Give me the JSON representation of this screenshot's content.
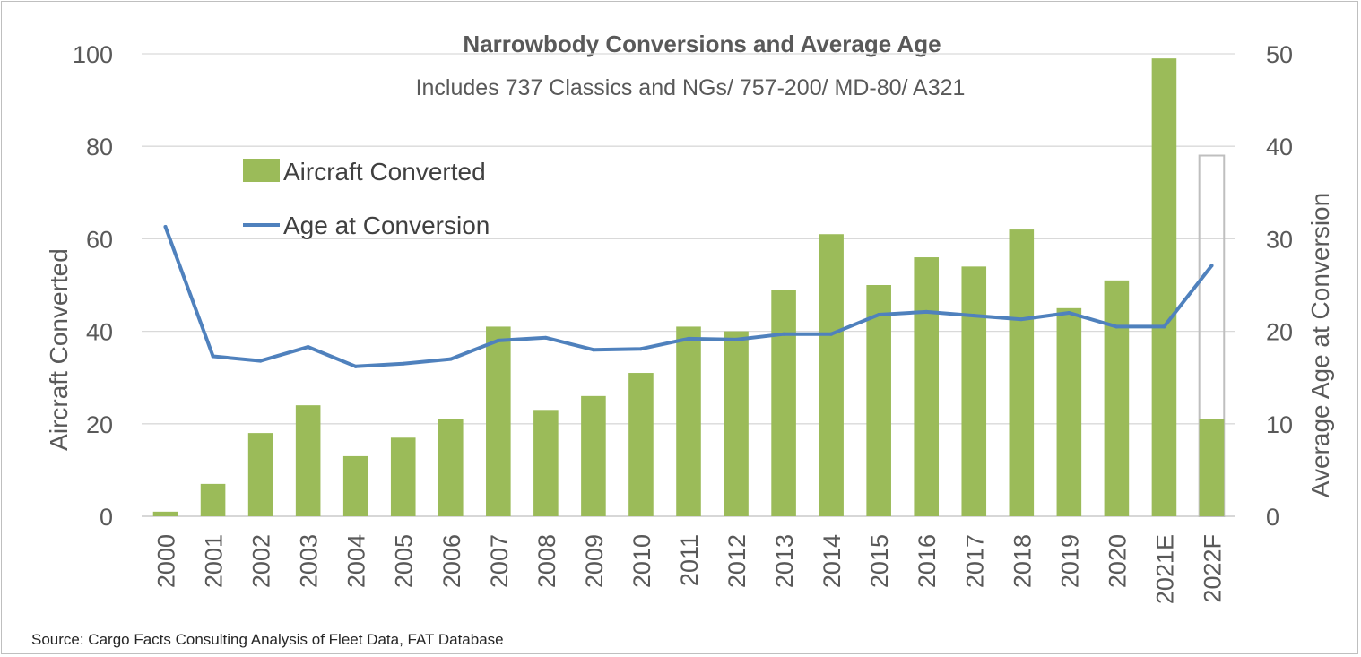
{
  "chart_data": {
    "type": "bar",
    "title": "Narrowbody Conversions and Average Age",
    "subtitle": "Includes 737 Classics and NGs/ 757-200/ MD-80/ A321",
    "categories": [
      "2000",
      "2001",
      "2002",
      "2003",
      "2004",
      "2005",
      "2006",
      "2007",
      "2008",
      "2009",
      "2010",
      "2011",
      "2012",
      "2013",
      "2014",
      "2015",
      "2016",
      "2017",
      "2018",
      "2019",
      "2020",
      "2021E",
      "2022F"
    ],
    "series": [
      {
        "name": "Aircraft Converted",
        "type": "bar",
        "axis": "left",
        "color": "#9bbb59",
        "values": [
          1,
          7,
          18,
          24,
          13,
          17,
          21,
          41,
          23,
          26,
          31,
          41,
          40,
          49,
          61,
          50,
          56,
          54,
          62,
          45,
          51,
          99,
          21
        ]
      },
      {
        "name": "Age at Conversion",
        "type": "line",
        "axis": "right",
        "color": "#4f81bd",
        "values": [
          31.3,
          17.3,
          16.8,
          18.3,
          16.2,
          16.5,
          17.0,
          19.0,
          19.3,
          18.0,
          18.1,
          19.2,
          19.1,
          19.7,
          19.7,
          21.8,
          22.1,
          21.7,
          21.3,
          22.0,
          20.5,
          20.5,
          27.1
        ]
      }
    ],
    "forecast_outline": {
      "category": "2022F",
      "value": 78,
      "color": "#bfbfbf"
    },
    "ylabel": "Aircraft Converted",
    "y2label": "Average Age at Conversion",
    "ylim": [
      0,
      100
    ],
    "y2lim": [
      0,
      50
    ],
    "yticks": [
      0,
      20,
      40,
      60,
      80,
      100
    ],
    "y2ticks": [
      0,
      10,
      20,
      30,
      40,
      50
    ],
    "grid": true,
    "legend_position": "top-left"
  },
  "source": "Source: Cargo Facts Consulting Analysis of Fleet Data, FAT Database"
}
